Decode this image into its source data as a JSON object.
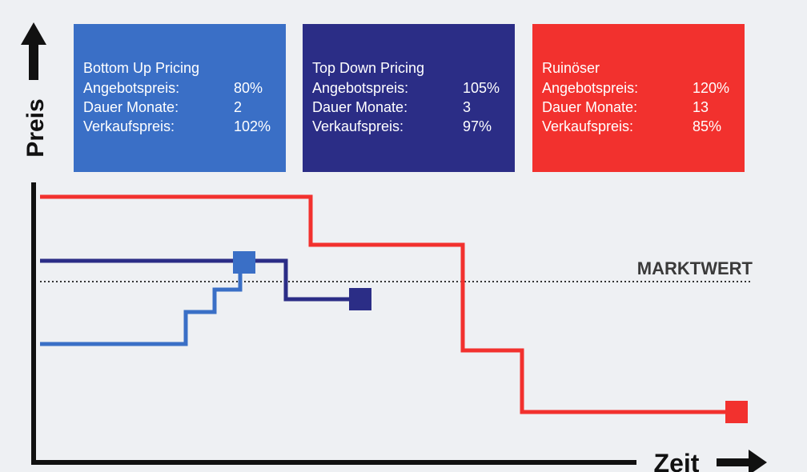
{
  "axes": {
    "y_label": "Preis",
    "x_label": "Zeit",
    "reference_label": "MARKTWERT"
  },
  "boxes": [
    {
      "title": "Bottom Up Pricing",
      "rows": [
        [
          "Angebotspreis:",
          "80%"
        ],
        [
          "Dauer Monate:",
          "2"
        ],
        [
          "Verkaufspreis:",
          "102%"
        ]
      ]
    },
    {
      "title": "Top Down Pricing",
      "rows": [
        [
          "Angebotspreis:",
          "105%"
        ],
        [
          "Dauer Monate:",
          "3"
        ],
        [
          "Verkaufspreis:",
          "97%"
        ]
      ]
    },
    {
      "title": "Ruinöser",
      "rows": [
        [
          "Angebotspreis:",
          "120%"
        ],
        [
          "Dauer Monate:",
          "13"
        ],
        [
          "Verkaufspreis:",
          "85%"
        ]
      ]
    }
  ]
}
